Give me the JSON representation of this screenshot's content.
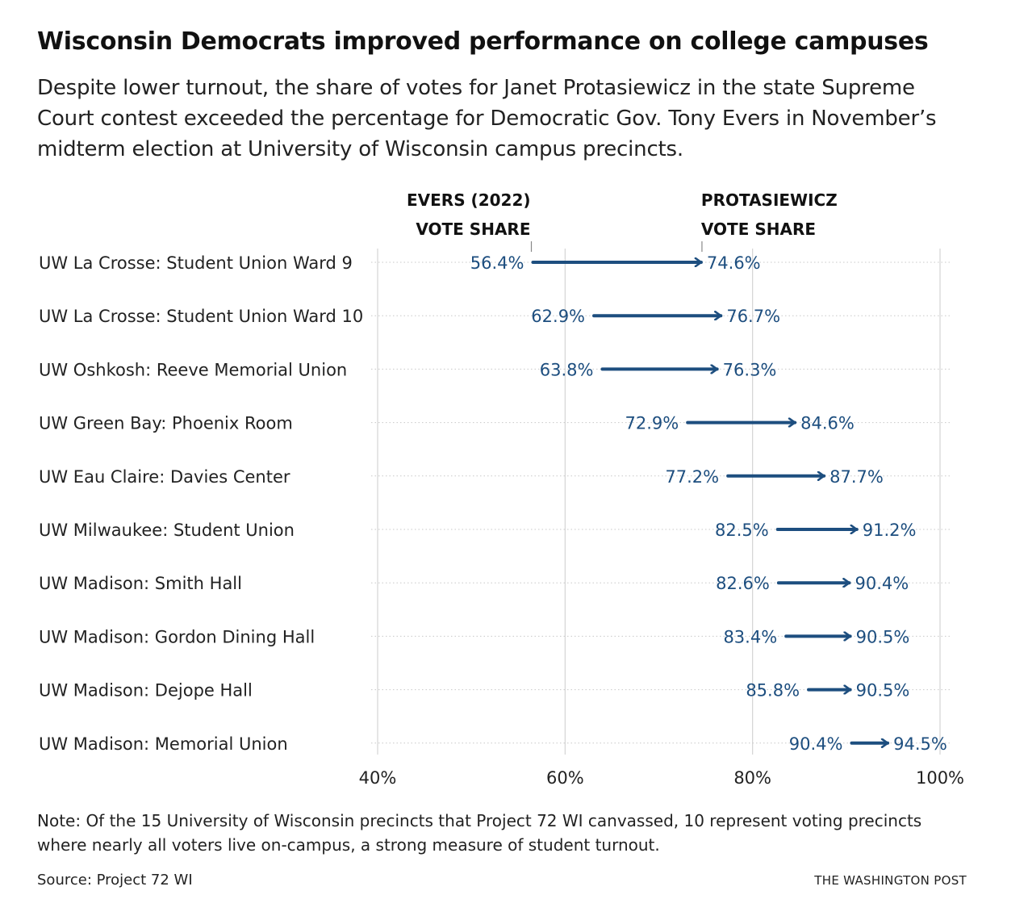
{
  "header": {
    "title": "Wisconsin Democrats improved performance on college campuses",
    "subtitle": "Despite lower turnout, the share of votes for Janet Protasiewicz in the state Supreme Court contest exceeded the percentage for Democratic Gov. Tony Evers in November’s midterm election at University of Wisconsin campus precincts."
  },
  "footer": {
    "note": "Note: Of the 15 University of Wisconsin precincts that Project 72 WI canvassed, 10 represent voting precincts where nearly all voters live on-campus, a strong measure of student turnout.",
    "source": "Source: Project 72 WI",
    "credit": "THE WASHINGTON POST"
  },
  "colors": {
    "accent": "#1d4e7f",
    "gridline": "#d4d4d4",
    "text": "#222222"
  },
  "chart_data": {
    "type": "arrow",
    "series": [
      {
        "name_line1": "EVERS (2022)",
        "name_line2": "VOTE SHARE",
        "key": "start"
      },
      {
        "name_line1": "PROTASIEWICZ",
        "name_line2": "VOTE SHARE",
        "key": "end"
      }
    ],
    "categories": [
      "UW La Crosse: Student Union Ward 9",
      "UW La Crosse: Student Union Ward 10",
      "UW Oshkosh: Reeve Memorial Union",
      "UW Green Bay: Phoenix Room",
      "UW Eau Claire: Davies Center",
      "UW Milwaukee: Student Union",
      "UW Madison: Smith Hall",
      "UW Madison: Gordon Dining Hall",
      "UW Madison: Dejope Hall",
      "UW Madison: Memorial Union"
    ],
    "start": [
      56.4,
      62.9,
      63.8,
      72.9,
      77.2,
      82.5,
      82.6,
      83.4,
      85.8,
      90.4
    ],
    "end": [
      74.6,
      76.7,
      76.3,
      84.6,
      87.7,
      91.2,
      90.4,
      90.5,
      90.5,
      94.5
    ],
    "start_labels": [
      "56.4%",
      "62.9%",
      "63.8%",
      "72.9%",
      "77.2%",
      "82.5%",
      "82.6%",
      "83.4%",
      "85.8%",
      "90.4%"
    ],
    "end_labels": [
      "74.6%",
      "76.7%",
      "76.3%",
      "84.6%",
      "87.7%",
      "91.2%",
      "90.4%",
      "90.5%",
      "90.5%",
      "94.5%"
    ],
    "x_ticks": [
      40,
      60,
      80,
      100
    ],
    "x_tick_labels": [
      "40%",
      "60%",
      "80%",
      "100%"
    ],
    "xlim": [
      40,
      100
    ],
    "grid": true
  }
}
